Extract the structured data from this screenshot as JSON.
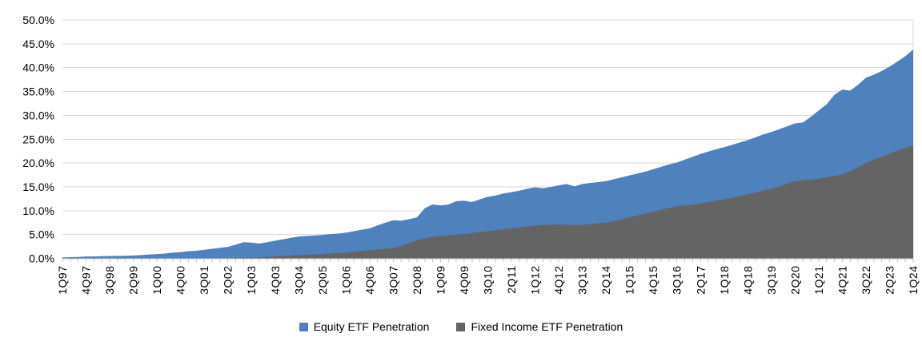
{
  "chart_data": {
    "type": "area",
    "stacking": "overlap",
    "title": "",
    "x_points_count": 109,
    "x_label_interval": 3,
    "x_tick_labels": [
      "1Q97",
      "4Q97",
      "3Q98",
      "2Q99",
      "1Q00",
      "4Q00",
      "3Q01",
      "2Q02",
      "1Q03",
      "4Q03",
      "3Q04",
      "2Q05",
      "1Q06",
      "4Q06",
      "3Q07",
      "2Q08",
      "1Q09",
      "4Q09",
      "3Q10",
      "2Q11",
      "1Q12",
      "4Q12",
      "3Q13",
      "2Q14",
      "1Q15",
      "4Q15",
      "3Q16",
      "2Q17",
      "1Q18",
      "4Q18",
      "3Q19",
      "2Q20",
      "1Q21",
      "4Q21",
      "3Q22",
      "2Q23",
      "1Q24"
    ],
    "y_axis": {
      "min": 0,
      "max": 50,
      "step": 5,
      "tick_labels": [
        "0.0%",
        "5.0%",
        "10.0%",
        "15.0%",
        "20.0%",
        "25.0%",
        "30.0%",
        "35.0%",
        "40.0%",
        "45.0%",
        "50.0%"
      ]
    },
    "legend_position": "bottom",
    "grid": "horizontal",
    "series": [
      {
        "name": "Equity ETF Penetration",
        "color": "#4f81bd",
        "values": [
          0.2,
          0.25,
          0.3,
          0.4,
          0.4,
          0.45,
          0.5,
          0.5,
          0.55,
          0.6,
          0.7,
          0.8,
          0.9,
          1.0,
          1.2,
          1.3,
          1.5,
          1.6,
          1.8,
          2.0,
          2.2,
          2.4,
          2.9,
          3.4,
          3.3,
          3.1,
          3.4,
          3.7,
          4.0,
          4.3,
          4.6,
          4.7,
          4.8,
          4.9,
          5.1,
          5.2,
          5.4,
          5.7,
          6.0,
          6.3,
          6.9,
          7.5,
          8.0,
          7.9,
          8.2,
          8.6,
          10.5,
          11.3,
          11.1,
          11.3,
          12.0,
          12.1,
          11.8,
          12.4,
          12.9,
          13.2,
          13.6,
          13.9,
          14.2,
          14.6,
          14.9,
          14.7,
          15.0,
          15.3,
          15.6,
          15.1,
          15.6,
          15.8,
          16.0,
          16.2,
          16.6,
          17.0,
          17.4,
          17.8,
          18.2,
          18.7,
          19.2,
          19.7,
          20.1,
          20.7,
          21.3,
          21.9,
          22.4,
          22.9,
          23.3,
          23.8,
          24.3,
          24.8,
          25.4,
          26.0,
          26.5,
          27.1,
          27.7,
          28.3,
          28.5,
          29.7,
          31.0,
          32.3,
          34.3,
          35.4,
          35.2,
          36.4,
          37.9,
          38.5,
          39.3,
          40.2,
          41.3,
          42.4,
          43.8
        ]
      },
      {
        "name": "Fixed Income ETF Penetration",
        "color": "#646464",
        "values": [
          0,
          0,
          0,
          0,
          0,
          0,
          0,
          0,
          0,
          0,
          0,
          0,
          0,
          0,
          0,
          0,
          0,
          0,
          0,
          0,
          0,
          0.05,
          0.1,
          0.1,
          0.15,
          0.2,
          0.3,
          0.4,
          0.5,
          0.6,
          0.7,
          0.75,
          0.8,
          0.9,
          1.0,
          1.1,
          1.2,
          1.4,
          1.5,
          1.7,
          1.85,
          2.0,
          2.2,
          2.6,
          3.2,
          3.8,
          4.2,
          4.5,
          4.7,
          4.8,
          5.0,
          5.1,
          5.3,
          5.5,
          5.7,
          5.9,
          6.1,
          6.3,
          6.5,
          6.7,
          6.9,
          7.0,
          7.05,
          7.1,
          7.05,
          7.0,
          7.0,
          7.2,
          7.35,
          7.5,
          7.8,
          8.2,
          8.6,
          9.0,
          9.4,
          9.8,
          10.2,
          10.6,
          10.9,
          11.1,
          11.3,
          11.5,
          11.8,
          12.1,
          12.4,
          12.7,
          13.1,
          13.4,
          13.8,
          14.2,
          14.6,
          15.1,
          15.7,
          16.2,
          16.4,
          16.5,
          16.7,
          17.0,
          17.3,
          17.6,
          18.3,
          19.1,
          20.0,
          20.7,
          21.3,
          21.9,
          22.6,
          23.2,
          23.6
        ]
      }
    ],
    "colors": {
      "gridline": "#d9d9d9",
      "axis": "#c6c6c6",
      "text": "#000000",
      "background": "#ffffff"
    }
  },
  "legend": {
    "items": [
      {
        "label": "Equity ETF Penetration",
        "color": "#4f81bd"
      },
      {
        "label": "Fixed Income ETF Penetration",
        "color": "#646464"
      }
    ]
  }
}
